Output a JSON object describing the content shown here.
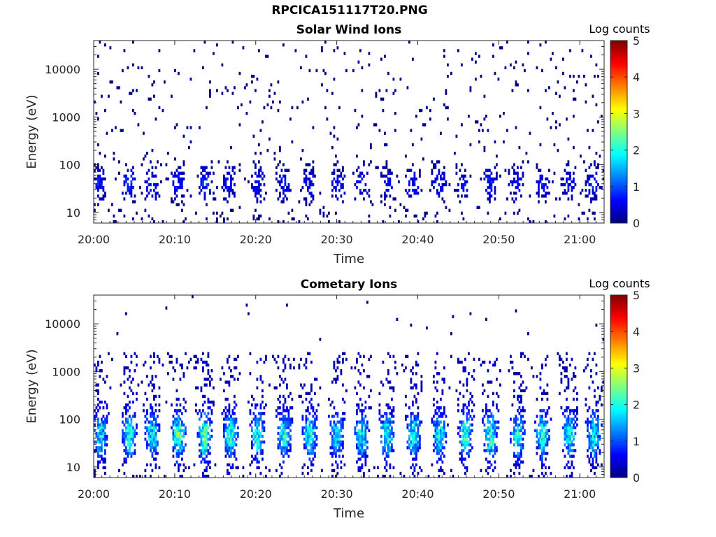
{
  "figure_title": "RPCICA151117T20.PNG",
  "colors": {
    "colormap": "jet",
    "background": "#ffffff",
    "axis": "#262626",
    "colormap_stops": [
      "#00008f",
      "#0000ff",
      "#00ffff",
      "#ffff00",
      "#ff0000",
      "#800000"
    ]
  },
  "chart_data": [
    {
      "type": "heatmap",
      "title": "Solar Wind Ions",
      "xlabel": "Time",
      "ylabel": "Energy (eV)",
      "x_tick_labels": [
        "20:00",
        "20:10",
        "20:20",
        "20:30",
        "20:40",
        "20:50",
        "21:00"
      ],
      "x_range": [
        "20:00",
        "21:03"
      ],
      "y_scale": "log",
      "y_range": [
        6,
        40000
      ],
      "y_tick_labels": [
        "10",
        "100",
        "1000",
        "10000"
      ],
      "colorbar": {
        "label": "Log counts",
        "range": [
          0,
          5
        ],
        "tick_labels": [
          "0",
          "1",
          "2",
          "3",
          "4",
          "5"
        ]
      },
      "grid": false,
      "legend": "none",
      "seed": 7,
      "bursts": [
        {
          "t": 0.5,
          "peak": 1.2
        },
        {
          "t": 4.3,
          "peak": 1.6
        },
        {
          "t": 7.0,
          "peak": 1.2
        },
        {
          "t": 10.3,
          "peak": 1.3
        },
        {
          "t": 13.8,
          "peak": 1.5
        },
        {
          "t": 16.5,
          "peak": 1.1
        },
        {
          "t": 20.2,
          "peak": 1.2
        },
        {
          "t": 23.3,
          "peak": 1.1
        },
        {
          "t": 26.5,
          "peak": 1.0
        },
        {
          "t": 30.0,
          "peak": 1.0
        },
        {
          "t": 33.0,
          "peak": 1.2
        },
        {
          "t": 36.2,
          "peak": 1.0
        },
        {
          "t": 39.3,
          "peak": 1.2
        },
        {
          "t": 42.5,
          "peak": 1.1
        },
        {
          "t": 45.5,
          "peak": 1.1
        },
        {
          "t": 48.8,
          "peak": 1.3
        },
        {
          "t": 52.0,
          "peak": 1.2
        },
        {
          "t": 55.3,
          "peak": 1.2
        },
        {
          "t": 58.5,
          "peak": 1.1
        },
        {
          "t": 61.5,
          "peak": 1.2
        }
      ]
    },
    {
      "type": "heatmap",
      "title": "Cometary Ions",
      "xlabel": "Time",
      "ylabel": "Energy (eV)",
      "x_tick_labels": [
        "20:00",
        "20:10",
        "20:20",
        "20:30",
        "20:40",
        "20:50",
        "21:00"
      ],
      "x_range": [
        "20:00",
        "21:03"
      ],
      "y_scale": "log",
      "y_range": [
        6,
        40000
      ],
      "y_tick_labels": [
        "10",
        "100",
        "1000",
        "10000"
      ],
      "colorbar": {
        "label": "Log counts",
        "range": [
          0,
          5
        ],
        "tick_labels": [
          "0",
          "1",
          "2",
          "3",
          "4",
          "5"
        ]
      },
      "grid": false,
      "legend": "none",
      "seed": 19,
      "bursts": [
        {
          "t": 0.7,
          "peak": 2.1
        },
        {
          "t": 4.3,
          "peak": 2.3
        },
        {
          "t": 7.1,
          "peak": 2.2
        },
        {
          "t": 10.4,
          "peak": 2.6
        },
        {
          "t": 13.6,
          "peak": 2.6
        },
        {
          "t": 16.8,
          "peak": 2.3
        },
        {
          "t": 20.1,
          "peak": 2.3
        },
        {
          "t": 23.4,
          "peak": 2.3
        },
        {
          "t": 26.6,
          "peak": 2.3
        },
        {
          "t": 29.9,
          "peak": 2.0
        },
        {
          "t": 33.0,
          "peak": 2.3
        },
        {
          "t": 36.1,
          "peak": 2.2
        },
        {
          "t": 39.4,
          "peak": 2.2
        },
        {
          "t": 42.6,
          "peak": 2.2
        },
        {
          "t": 45.8,
          "peak": 2.3
        },
        {
          "t": 48.9,
          "peak": 2.4
        },
        {
          "t": 52.2,
          "peak": 2.2
        },
        {
          "t": 55.3,
          "peak": 2.3
        },
        {
          "t": 58.6,
          "peak": 2.2
        },
        {
          "t": 61.6,
          "peak": 2.2
        }
      ]
    }
  ]
}
